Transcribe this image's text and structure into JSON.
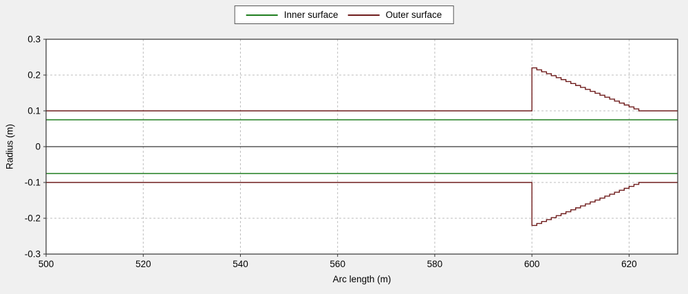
{
  "legend": {
    "items": [
      {
        "label": "Inner surface",
        "color": "#1f7d1f"
      },
      {
        "label": "Outer surface",
        "color": "#6e1b1b"
      }
    ]
  },
  "axes": {
    "x_label": "Arc length (m)",
    "y_label": "Radius (m)"
  },
  "chart_data": {
    "type": "line",
    "title": "",
    "xlabel": "Arc length (m)",
    "ylabel": "Radius (m)",
    "xlim": [
      500,
      630
    ],
    "ylim": [
      -0.3,
      0.3
    ],
    "xticks": [
      500,
      520,
      540,
      560,
      580,
      600,
      620
    ],
    "yticks": [
      -0.3,
      -0.2,
      -0.1,
      0,
      0.1,
      0.2,
      0.3
    ],
    "grid": "dashed",
    "grid_color": "#bdbdbd",
    "frame_color": "#333333",
    "zero_line_color": "#000000",
    "plot_background": "#ffffff",
    "outer_background": "#f0f0f0",
    "legend_position": "top-center",
    "series": [
      {
        "name": "Inner surface",
        "color": "#1f7d1f",
        "lines": [
          {
            "segments": [
              {
                "type": "points",
                "pts": [
                  [
                    500,
                    0.075
                  ],
                  [
                    630,
                    0.075
                  ]
                ]
              }
            ]
          },
          {
            "segments": [
              {
                "type": "points",
                "pts": [
                  [
                    500,
                    -0.075
                  ],
                  [
                    630,
                    -0.075
                  ]
                ]
              }
            ]
          }
        ]
      },
      {
        "name": "Outer surface",
        "color": "#6e1b1b",
        "lines": [
          {
            "segments": [
              {
                "type": "points",
                "pts": [
                  [
                    500,
                    0.1
                  ],
                  [
                    600,
                    0.1
                  ],
                  [
                    600,
                    0.22
                  ]
                ]
              },
              {
                "type": "stair",
                "x0": 600,
                "x1": 622,
                "y0": 0.22,
                "y1": 0.1,
                "n": 22
              },
              {
                "type": "points",
                "pts": [
                  [
                    622,
                    0.1
                  ],
                  [
                    630,
                    0.1
                  ]
                ]
              }
            ]
          },
          {
            "segments": [
              {
                "type": "points",
                "pts": [
                  [
                    500,
                    -0.1
                  ],
                  [
                    600,
                    -0.1
                  ],
                  [
                    600,
                    -0.22
                  ]
                ]
              },
              {
                "type": "stair",
                "x0": 600,
                "x1": 622,
                "y0": -0.22,
                "y1": -0.1,
                "n": 22
              },
              {
                "type": "points",
                "pts": [
                  [
                    622,
                    -0.1
                  ],
                  [
                    630,
                    -0.1
                  ]
                ]
              }
            ]
          }
        ]
      }
    ]
  }
}
